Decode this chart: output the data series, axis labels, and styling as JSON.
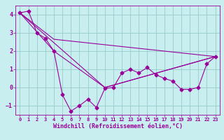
{
  "title": "",
  "xlabel": "Windchill (Refroidissement éolien,°C)",
  "ylabel": "",
  "bg_color": "#c8eef0",
  "line_color": "#990099",
  "grid_color": "#99cccc",
  "ylim": [
    -1.5,
    4.5
  ],
  "xlim": [
    -0.5,
    23.5
  ],
  "yticks": [
    -1,
    0,
    1,
    2,
    3,
    4
  ],
  "xticks": [
    0,
    1,
    2,
    3,
    4,
    5,
    6,
    7,
    8,
    9,
    10,
    11,
    12,
    13,
    14,
    15,
    16,
    17,
    18,
    19,
    20,
    21,
    22,
    23
  ],
  "line1_x": [
    0,
    1,
    2,
    3,
    4,
    5,
    6,
    7,
    8,
    9,
    10,
    11,
    12,
    13,
    14,
    15,
    16,
    17,
    18,
    19,
    20,
    21,
    22,
    23
  ],
  "line1_y": [
    4.1,
    4.2,
    3.0,
    2.7,
    2.0,
    -0.4,
    -1.3,
    -1.0,
    -0.65,
    -1.1,
    -0.05,
    0.0,
    0.8,
    1.0,
    0.8,
    1.1,
    0.7,
    0.5,
    0.35,
    -0.1,
    -0.1,
    0.0,
    1.3,
    1.7
  ],
  "line2_x": [
    0,
    4,
    23
  ],
  "line2_y": [
    4.1,
    2.65,
    1.7
  ],
  "line3_x": [
    0,
    4,
    10,
    23
  ],
  "line3_y": [
    4.1,
    2.0,
    0.0,
    1.7
  ],
  "line4_x": [
    0,
    10,
    23
  ],
  "line4_y": [
    4.1,
    0.0,
    1.7
  ]
}
